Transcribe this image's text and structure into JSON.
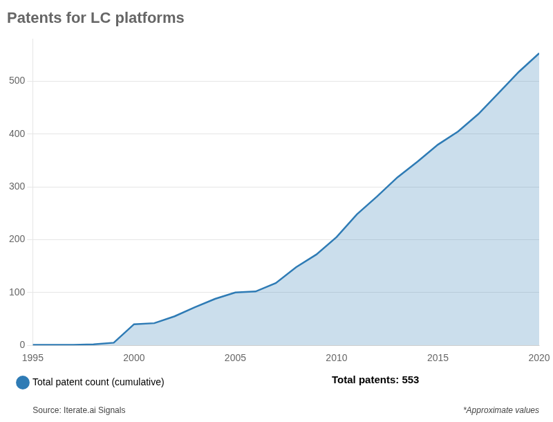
{
  "chart_data": {
    "type": "area",
    "title": "Patents for LC platforms",
    "x": [
      1995,
      1996,
      1997,
      1998,
      1999,
      2000,
      2001,
      2002,
      2003,
      2004,
      2005,
      2006,
      2007,
      2008,
      2009,
      2010,
      2011,
      2012,
      2013,
      2014,
      2015,
      2016,
      2017,
      2018,
      2019,
      2020
    ],
    "series": [
      {
        "name": "Total patent count (cumulative)",
        "color": "#2e7bb5",
        "values": [
          1,
          1,
          1,
          2,
          5,
          40,
          42,
          55,
          72,
          88,
          100,
          102,
          118,
          148,
          172,
          205,
          248,
          282,
          318,
          348,
          380,
          405,
          438,
          478,
          518,
          553
        ]
      }
    ],
    "xlim": [
      1995,
      2020
    ],
    "xticks": [
      1995,
      2000,
      2005,
      2010,
      2015,
      2020
    ],
    "ylim": [
      0,
      580
    ],
    "yticks": [
      0,
      100,
      200,
      300,
      400,
      500
    ],
    "grid": "y",
    "legend": "bottom",
    "annotations": [
      "Total patents: 553",
      "Source: Iterate.ai Signals",
      "*Approximate values"
    ]
  }
}
